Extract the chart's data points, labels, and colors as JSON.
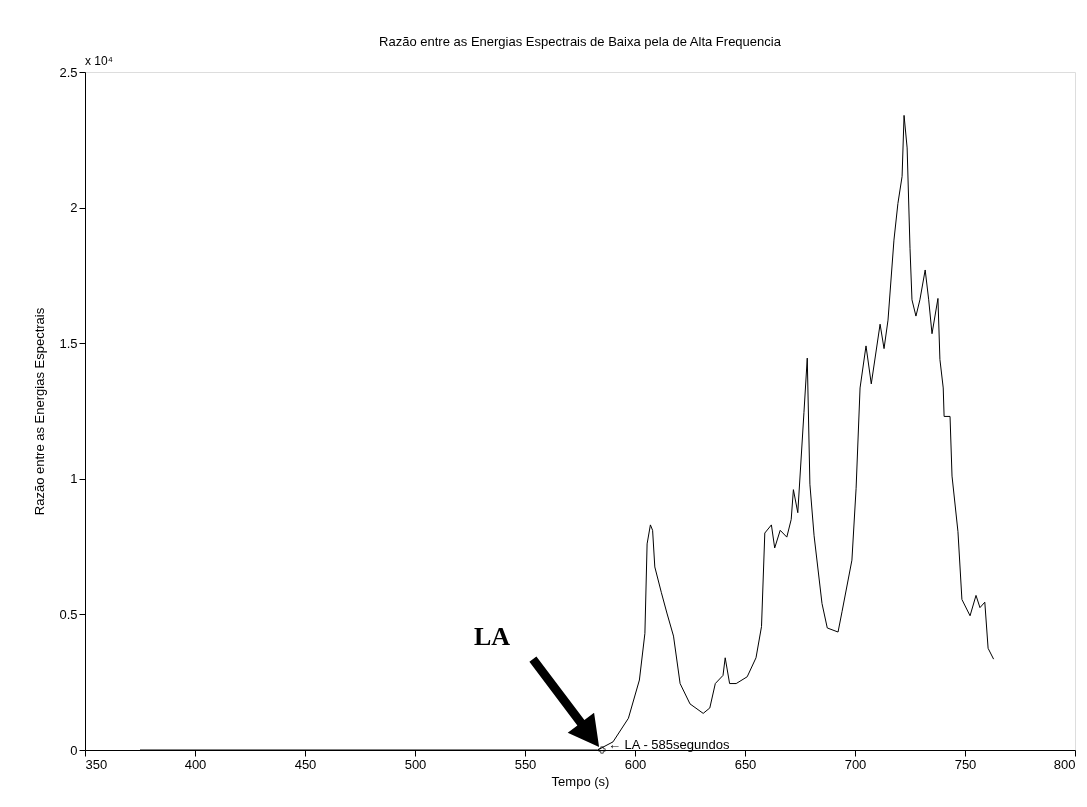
{
  "chart_data": {
    "type": "line",
    "title": "Razão entre as Energias Espectrais de Baixa pela de Alta Frequencia",
    "xlabel": "Tempo (s)",
    "ylabel": "Razão entre as Energias Espectrais",
    "xlim": [
      350,
      800
    ],
    "xticks": [
      350,
      400,
      450,
      500,
      550,
      600,
      650,
      700,
      750,
      800
    ],
    "ylim": [
      0,
      2.5
    ],
    "yticks": [
      0,
      0.5,
      1,
      1.5,
      2,
      2.5
    ],
    "grid": false,
    "line_style": "solid",
    "series": [
      {
        "color": "#000000",
        "x": [
          375,
          520,
          583,
          590,
          597,
          602,
          604.5,
          605.5,
          607,
          608,
          609,
          612,
          614.5,
          617.5,
          620.5,
          625,
          631,
          634,
          636.5,
          640,
          641,
          643,
          646,
          651,
          655,
          657.5,
          659,
          662,
          663.5,
          666,
          669,
          671,
          672,
          674,
          676.8,
          678.3,
          679.5,
          681.4,
          685,
          687.4,
          692.3,
          694.1,
          698.6,
          700.5,
          702.3,
          705,
          707.4,
          711.4,
          713.2,
          715,
          717.7,
          719.5,
          721.4,
          722.3,
          723.7,
          725,
          725.9,
          727.7,
          729.5,
          731.9,
          733.5,
          735,
          737.7,
          738.6,
          740.1,
          740.5,
          743.2,
          744.1,
          746.8,
          748.6,
          752.3,
          755,
          756.8,
          759,
          760.5,
          763
        ],
        "values": [
          0,
          0,
          0,
          0.03,
          0.117,
          0.258,
          0.43,
          0.76,
          0.83,
          0.81,
          0.675,
          0.58,
          0.505,
          0.42,
          0.245,
          0.17,
          0.135,
          0.155,
          0.245,
          0.275,
          0.34,
          0.245,
          0.245,
          0.27,
          0.34,
          0.455,
          0.8,
          0.83,
          0.745,
          0.81,
          0.785,
          0.85,
          0.96,
          0.875,
          1.245,
          1.445,
          0.98,
          0.79,
          0.54,
          0.45,
          0.435,
          0.51,
          0.7,
          0.965,
          1.335,
          1.49,
          1.35,
          1.57,
          1.48,
          1.585,
          1.88,
          2.015,
          2.115,
          2.34,
          2.22,
          1.85,
          1.66,
          1.6,
          1.66,
          1.77,
          1.66,
          1.535,
          1.665,
          1.44,
          1.335,
          1.23,
          1.23,
          1.01,
          0.805,
          0.555,
          0.495,
          0.57,
          0.525,
          0.545,
          0.375,
          0.335
        ]
      },
      {
        "color": "#000000",
        "type": "scatter",
        "marker": "cross",
        "x": [
          585
        ],
        "values": [
          0
        ]
      }
    ],
    "annotations": [
      {
        "text": "← LA - 585segundos",
        "x": 585,
        "y": 0
      },
      "LA",
      "x 10⁴"
    ]
  }
}
